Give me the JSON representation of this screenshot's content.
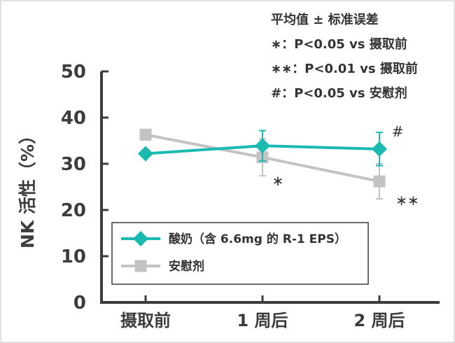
{
  "chart_data": {
    "type": "line",
    "categories": [
      "摄取前",
      "1 周后",
      "2 周后"
    ],
    "ylabel": "NK 活性（%）",
    "ylim": [
      0,
      50
    ],
    "yticks": [
      0,
      10,
      20,
      30,
      40,
      50
    ],
    "grid": false,
    "legend_position": "bottom-left",
    "notes": [
      "平均值 ± 标准误差",
      "∗：P<0.05 vs 摄取前",
      "∗∗：P<0.01 vs 摄取前",
      "#：P<0.05 vs 安慰剂"
    ],
    "series": [
      {
        "name": "酸奶（含 6.6mg 的 R-1 EPS）",
        "values": [
          32.2,
          33.9,
          33.2
        ],
        "errors": [
          null,
          3.3,
          3.6
        ],
        "color": "#1abab0",
        "marker": "diamond"
      },
      {
        "name": "安慰剂",
        "values": [
          36.3,
          31.4,
          26.2
        ],
        "errors": [
          null,
          4.0,
          3.8
        ],
        "color": "#c3c3c3",
        "marker": "square"
      }
    ],
    "annotations": [
      {
        "series": 0,
        "index": 2,
        "text": "#"
      },
      {
        "series": 1,
        "index": 1,
        "text": "∗"
      },
      {
        "series": 1,
        "index": 2,
        "text": "∗∗"
      }
    ]
  }
}
